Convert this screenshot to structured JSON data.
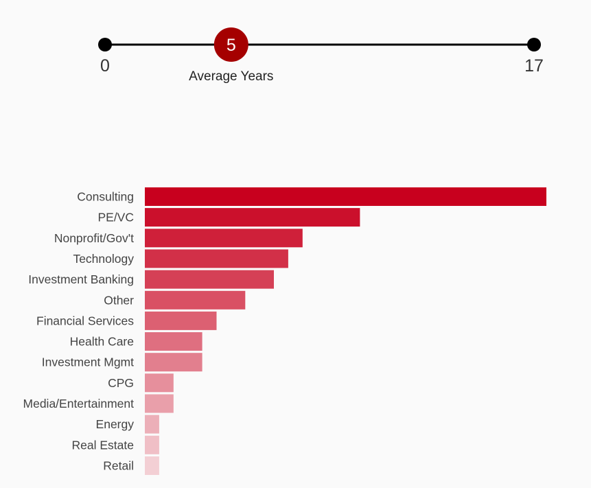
{
  "range_indicator": {
    "min_label": "0",
    "max_label": "17",
    "value_label": "5",
    "caption": "Average Years",
    "min": 0,
    "max": 17,
    "value": 5,
    "accent_color": "#a50000",
    "line_color": "#000000"
  },
  "chart_data": {
    "type": "bar",
    "orientation": "horizontal",
    "categories": [
      "Consulting",
      "PE/VC",
      "Nonprofit/Gov't",
      "Technology",
      "Investment Banking",
      "Other",
      "Financial Services",
      "Health Care",
      "Investment Mgmt",
      "CPG",
      "Media/Entertainment",
      "Energy",
      "Real Estate",
      "Retail"
    ],
    "values": [
      28,
      15,
      11,
      10,
      9,
      7,
      5,
      4,
      4,
      2,
      2,
      1,
      1,
      1
    ],
    "xlim": [
      0,
      28
    ],
    "title": "",
    "xlabel": "",
    "ylabel": "",
    "grid": false,
    "legend": "none",
    "color_start": "#c8001e",
    "color_end": "#f3cfd4"
  }
}
